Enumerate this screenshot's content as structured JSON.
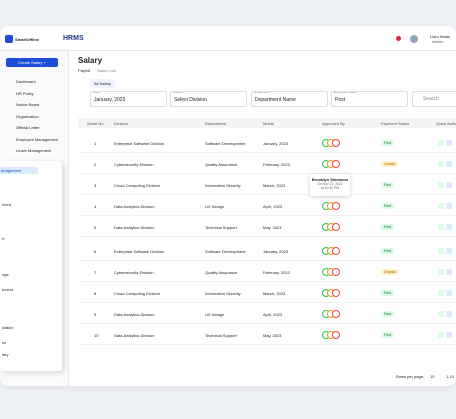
{
  "header": {
    "brand": "SmartOffline",
    "app": "HRMS",
    "user_name": "Liam Nolan",
    "user_role": "Admin"
  },
  "sidebar": {
    "create_button": "Create Salary +",
    "items": [
      "Dashboard",
      "HR Policy",
      "Notice Board",
      "Organization",
      "Official Letter",
      "Employee Management",
      "Leave Management"
    ],
    "overlay_items": [
      "anagement",
      "ment",
      "rt",
      "nge",
      "hment",
      "ization",
      "ce",
      "lary"
    ]
  },
  "page": {
    "title": "Salary",
    "breadcrumb": [
      "Payroll",
      "Salary List"
    ],
    "tab": "All Salary"
  },
  "filters": [
    {
      "label": "Date",
      "value": "January, 2023"
    },
    {
      "label": "Division",
      "value": "Select Division"
    },
    {
      "label": "Department",
      "value": "Department Name"
    },
    {
      "label": "Employee Status",
      "value": "Post"
    }
  ],
  "search": "Search",
  "table": {
    "headers": [
      "Serial No.",
      "Division",
      "Department",
      "Month",
      "Approved By",
      "Payment Status",
      "Quick Action"
    ],
    "rows": [
      [
        "1",
        "Enterprise Software Division",
        "Software Development",
        "January, 2023",
        "Paid"
      ],
      [
        "2",
        "Cybersecurity Division",
        "Quality Assurance",
        "February, 2023",
        "Unpaid"
      ],
      [
        "3",
        "Cloud Computing Division",
        "Information Security",
        "March, 2023",
        "Paid"
      ],
      [
        "4",
        "Data Analytics Division",
        "UX Design",
        "April, 2023",
        "Paid"
      ],
      [
        "5",
        "Data Analytics Division",
        "Technical Support",
        "May, 2023",
        "Paid"
      ],
      [
        "6",
        "Enterprise Software Division",
        "Software Development",
        "January, 2023",
        "Paid"
      ],
      [
        "7",
        "Cybersecurity Division",
        "Quality Assurance",
        "February, 2023",
        "Unpaid"
      ],
      [
        "8",
        "Cloud Computing Division",
        "Information Security",
        "March, 2023",
        "Paid"
      ],
      [
        "9",
        "Data Analytics Division",
        "UX Design",
        "April, 2023",
        "Paid"
      ],
      [
        "10",
        "Data Analytics Division",
        "Technical Support",
        "May, 2023",
        "Paid"
      ]
    ]
  },
  "tooltip": {
    "name": "Brooklyn Simmons",
    "date": "On Nov 21, 2022",
    "time": "at 10:30 PM"
  },
  "pagination": {
    "label": "Rows per page:",
    "value": "10",
    "range": "1-10"
  }
}
